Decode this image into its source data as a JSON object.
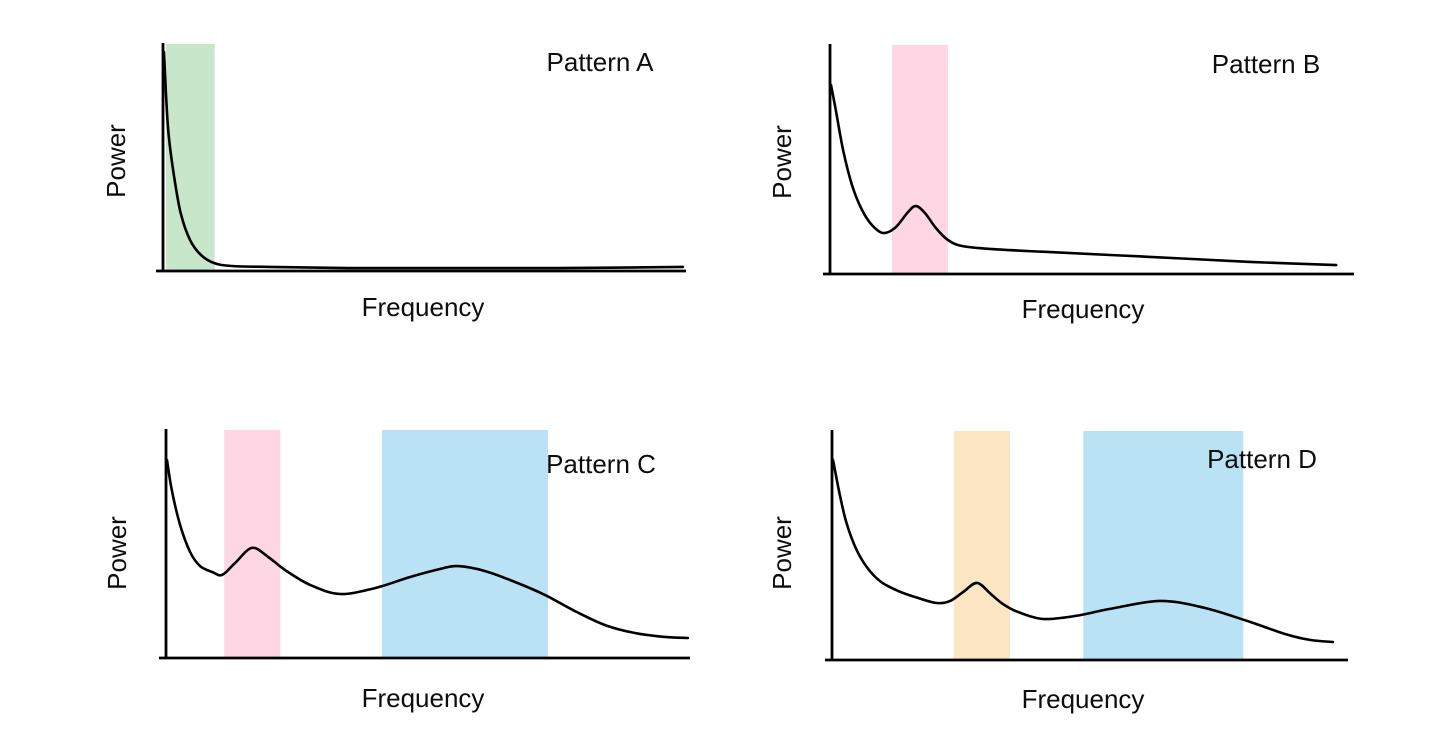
{
  "page": {
    "background": "#ffffff",
    "text_color": "#0d0d0d"
  },
  "chart_data": [
    {
      "type": "line",
      "panel": "top-left",
      "title": "Pattern A",
      "xlabel": "Frequency",
      "ylabel": "Power",
      "axis_ticks": "none",
      "x_range": [
        0,
        1
      ],
      "y_range": [
        0,
        1
      ],
      "line_color": "#000000",
      "axis_color": "#000000",
      "bands": [
        {
          "color": "#c8e6c9",
          "x_start": 0.006,
          "x_end": 0.099
        }
      ],
      "curve_x": [
        0.002,
        0.006,
        0.011,
        0.021,
        0.034,
        0.052,
        0.073,
        0.098,
        0.132,
        0.205,
        0.358,
        0.549,
        0.759,
        0.994
      ],
      "curve_y": [
        0.969,
        0.772,
        0.596,
        0.421,
        0.254,
        0.136,
        0.07,
        0.035,
        0.022,
        0.018,
        0.013,
        0.013,
        0.013,
        0.018
      ]
    },
    {
      "type": "line",
      "panel": "top-right",
      "title": "Pattern B",
      "xlabel": "Frequency",
      "ylabel": "Power",
      "axis_ticks": "none",
      "x_range": [
        0,
        1
      ],
      "y_range": [
        0,
        1
      ],
      "line_color": "#000000",
      "axis_color": "#000000",
      "bands": [
        {
          "color": "#ffd6e3",
          "x_start": 0.118,
          "x_end": 0.225
        }
      ],
      "curve_x": [
        0.002,
        0.011,
        0.025,
        0.042,
        0.061,
        0.08,
        0.101,
        0.124,
        0.149,
        0.164,
        0.181,
        0.202,
        0.225,
        0.252,
        0.305,
        0.42,
        0.611,
        0.802,
        0.966
      ],
      "curve_y": [
        0.829,
        0.719,
        0.544,
        0.39,
        0.281,
        0.215,
        0.18,
        0.202,
        0.272,
        0.298,
        0.268,
        0.202,
        0.149,
        0.123,
        0.11,
        0.096,
        0.075,
        0.053,
        0.039
      ]
    },
    {
      "type": "line",
      "panel": "bottom-left",
      "title": "Pattern C",
      "xlabel": "Frequency",
      "ylabel": "Power",
      "axis_ticks": "none",
      "x_range": [
        0,
        1
      ],
      "y_range": [
        0,
        1
      ],
      "line_color": "#000000",
      "axis_color": "#000000",
      "bands": [
        {
          "color": "#ffd6e3",
          "x_start": 0.111,
          "x_end": 0.218
        },
        {
          "color": "#b9e3f5",
          "x_start": 0.412,
          "x_end": 0.729
        }
      ],
      "curve_x": [
        0.002,
        0.011,
        0.027,
        0.046,
        0.065,
        0.088,
        0.107,
        0.132,
        0.164,
        0.195,
        0.227,
        0.275,
        0.332,
        0.399,
        0.466,
        0.523,
        0.557,
        0.609,
        0.666,
        0.723,
        0.78,
        0.838,
        0.895,
        0.952,
        0.996
      ],
      "curve_y": [
        0.872,
        0.74,
        0.586,
        0.467,
        0.405,
        0.379,
        0.366,
        0.419,
        0.485,
        0.445,
        0.388,
        0.322,
        0.282,
        0.308,
        0.357,
        0.392,
        0.405,
        0.383,
        0.335,
        0.278,
        0.207,
        0.145,
        0.11,
        0.093,
        0.088
      ]
    },
    {
      "type": "line",
      "panel": "bottom-right",
      "title": "Pattern D",
      "xlabel": "Frequency",
      "ylabel": "Power",
      "axis_ticks": "none",
      "x_range": [
        0,
        1
      ],
      "y_range": [
        0,
        1
      ],
      "line_color": "#000000",
      "axis_color": "#000000",
      "bands": [
        {
          "color": "#fce5c2",
          "x_start": 0.236,
          "x_end": 0.345
        },
        {
          "color": "#b9e3f5",
          "x_start": 0.487,
          "x_end": 0.797
        }
      ],
      "curve_x": [
        0.002,
        0.014,
        0.027,
        0.045,
        0.066,
        0.093,
        0.128,
        0.167,
        0.203,
        0.229,
        0.254,
        0.281,
        0.308,
        0.331,
        0.36,
        0.409,
        0.471,
        0.539,
        0.636,
        0.723,
        0.81,
        0.878,
        0.926,
        0.971
      ],
      "curve_y": [
        0.877,
        0.737,
        0.61,
        0.496,
        0.412,
        0.346,
        0.303,
        0.272,
        0.25,
        0.259,
        0.298,
        0.338,
        0.289,
        0.246,
        0.211,
        0.18,
        0.193,
        0.224,
        0.259,
        0.228,
        0.167,
        0.114,
        0.088,
        0.079
      ]
    }
  ]
}
